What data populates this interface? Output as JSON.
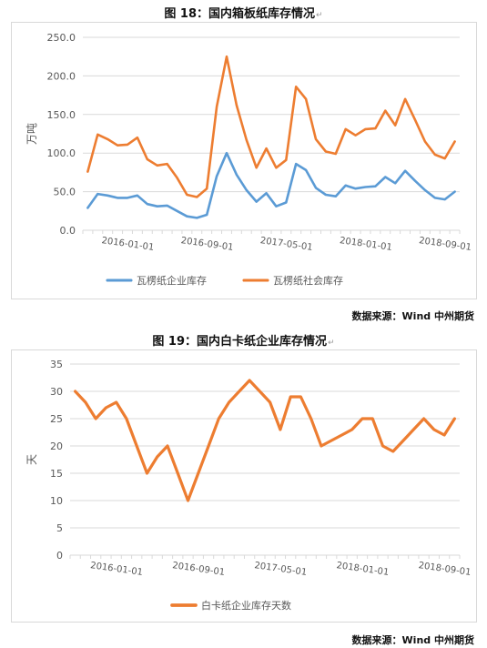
{
  "figure18": {
    "title": "图 18：国内箱板纸库存情况",
    "return_mark": "↵",
    "source": "数据来源：Wind 中州期货",
    "chart_data": {
      "type": "line",
      "title": "",
      "ylabel": "万吨",
      "xlabel": "",
      "ylim": [
        0,
        250
      ],
      "yticks": [
        "0.0",
        "50.0",
        "100.0",
        "150.0",
        "200.0",
        "250.0"
      ],
      "xtick_labels": [
        "2016-01-01",
        "2016-09-01",
        "2017-05-01",
        "2018-01-01",
        "2018-09-01"
      ],
      "xtick_index": [
        4,
        12,
        20,
        28,
        36
      ],
      "grid": true,
      "legend_position": "bottom",
      "series": [
        {
          "name": "瓦楞纸企业库存",
          "color": "#5b9bd5",
          "values": [
            29,
            47,
            45,
            42,
            42,
            45,
            34,
            31,
            32,
            25,
            18,
            16,
            20,
            70,
            100,
            72,
            52,
            37,
            48,
            31,
            36,
            86,
            78,
            55,
            46,
            44,
            58,
            54,
            56,
            57,
            69,
            61,
            77,
            64,
            52,
            42,
            40,
            50
          ]
        },
        {
          "name": "瓦楞纸社会库存",
          "color": "#ed7d31",
          "values": [
            76,
            124,
            118,
            110,
            111,
            120,
            92,
            84,
            86,
            68,
            46,
            43,
            54,
            160,
            225,
            162,
            117,
            81,
            106,
            81,
            91,
            186,
            170,
            118,
            102,
            99,
            131,
            123,
            131,
            132,
            155,
            136,
            170,
            143,
            115,
            98,
            93,
            115
          ]
        }
      ]
    }
  },
  "figure19": {
    "title": "图 19：国内白卡纸企业库存情况",
    "return_mark": "↵",
    "source": "数据来源：Wind 中州期货",
    "chart_data": {
      "type": "line",
      "title": "",
      "ylabel": "天",
      "xlabel": "",
      "ylim": [
        0,
        35
      ],
      "yticks": [
        "0",
        "5",
        "10",
        "15",
        "20",
        "25",
        "30",
        "35"
      ],
      "xtick_labels": [
        "2016-01-01",
        "2016-09-01",
        "2017-05-01",
        "2018-01-01",
        "2018-09-01"
      ],
      "xtick_index": [
        4,
        12,
        20,
        28,
        36
      ],
      "grid": true,
      "legend_position": "bottom",
      "series": [
        {
          "name": "白卡纸企业库存天数",
          "color": "#ed7d31",
          "values": [
            30,
            28,
            25,
            27,
            28,
            25,
            20,
            15,
            18,
            20,
            15,
            10,
            15,
            20,
            25,
            28,
            30,
            32,
            30,
            28,
            23,
            29,
            29,
            25,
            20,
            21,
            22,
            23,
            25,
            25,
            20,
            19,
            21,
            23,
            25,
            23,
            22,
            25
          ]
        }
      ]
    }
  }
}
